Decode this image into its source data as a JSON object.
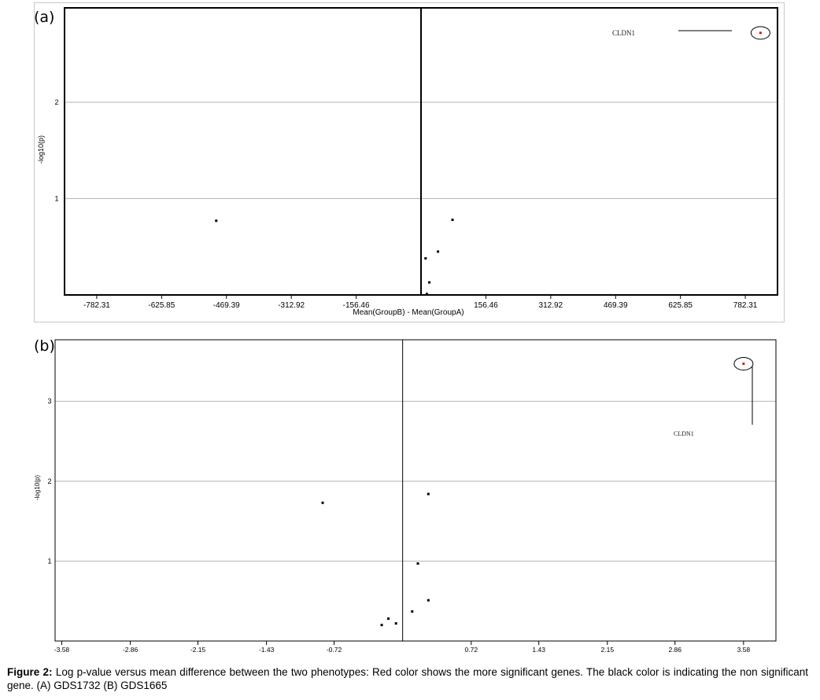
{
  "panels": {
    "a": {
      "letter": "(a)"
    },
    "b": {
      "letter": "(b)"
    }
  },
  "caption": {
    "label": "Figure 2:",
    "text": "Log p-value versus mean difference between the two phenotypes: Red color shows the more significant genes. The black color is indicating the non significant gene. (A) GDS1732 (B) GDS1665"
  },
  "colors": {
    "significant": "#e8141a",
    "nonsignificant": "#000000",
    "gridline": "#b4b4b4",
    "annotation": "#1a1a1a"
  },
  "chart_data": [
    {
      "type": "scatter",
      "panel": "a",
      "xlabel": "Mean(GroupB) - Mean(GroupA)",
      "ylabel": "-log10(p)",
      "xlim": [
        -860,
        860
      ],
      "ylim": [
        0,
        2.98
      ],
      "xticks": [
        -782.31,
        -625.85,
        -469.39,
        -312.92,
        -156.46,
        156.46,
        312.92,
        469.39,
        625.85,
        782.31
      ],
      "xtick_labels": [
        "-782.31",
        "-625.85",
        "-469.39",
        "-312.92",
        "-156.46",
        "156.46",
        "312.92",
        "469.39",
        "625.85",
        "782.31"
      ],
      "yticks": [
        1,
        2
      ],
      "ytick_labels": [
        "1",
        "2"
      ],
      "grid": "horizontal",
      "vline_x": 0,
      "points": [
        {
          "x": -494,
          "y": 0.77,
          "significant": false
        },
        {
          "x": 76,
          "y": 0.78,
          "significant": false
        },
        {
          "x": 41,
          "y": 0.45,
          "significant": false
        },
        {
          "x": 11,
          "y": 0.38,
          "significant": false
        },
        {
          "x": 20,
          "y": 0.13,
          "significant": false
        },
        {
          "x": 14,
          "y": 0.01,
          "significant": false
        },
        {
          "x": 819,
          "y": 2.72,
          "significant": true
        }
      ],
      "annotations": [
        {
          "label": "CLDN1"
        }
      ]
    },
    {
      "type": "scatter",
      "panel": "b",
      "xlabel": "",
      "ylabel": "-log10(p)",
      "xlim": [
        -3.65,
        3.92
      ],
      "ylim": [
        0,
        3.77
      ],
      "xticks": [
        -3.58,
        -2.86,
        -2.15,
        -1.43,
        -0.72,
        0.72,
        1.43,
        2.15,
        2.86,
        3.58
      ],
      "xtick_labels": [
        "-3.58",
        "-2.86",
        "-2.15",
        "-1.43",
        "-0.72",
        "0.72",
        "1.43",
        "2.15",
        "2.86",
        "3.58"
      ],
      "yticks": [
        1,
        2,
        3
      ],
      "ytick_labels": [
        "1",
        "2",
        "3"
      ],
      "grid": "horizontal",
      "vline_x": 0,
      "points": [
        {
          "x": -0.84,
          "y": 1.73,
          "significant": false
        },
        {
          "x": 0.27,
          "y": 1.84,
          "significant": false
        },
        {
          "x": 0.16,
          "y": 0.97,
          "significant": false
        },
        {
          "x": 0.27,
          "y": 0.51,
          "significant": false
        },
        {
          "x": 0.1,
          "y": 0.37,
          "significant": false
        },
        {
          "x": -0.15,
          "y": 0.28,
          "significant": false
        },
        {
          "x": -0.07,
          "y": 0.22,
          "significant": false
        },
        {
          "x": -0.22,
          "y": 0.2,
          "significant": false
        },
        {
          "x": 3.58,
          "y": 3.47,
          "significant": true
        }
      ],
      "annotations": [
        {
          "label": "CLDN1"
        }
      ]
    }
  ]
}
